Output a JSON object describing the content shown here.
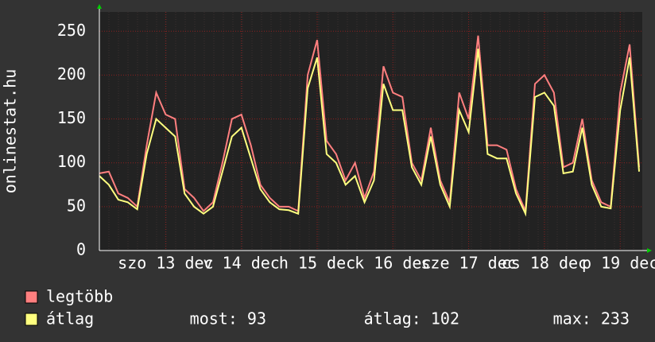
{
  "chart_data": {
    "type": "line",
    "y_label": "onlinestat.hu",
    "x": [
      0,
      3,
      6,
      9,
      12,
      15,
      18,
      21,
      24,
      27,
      30,
      33,
      36,
      39,
      42,
      45,
      48,
      51,
      54,
      57,
      60,
      63,
      66,
      69,
      72,
      75,
      78,
      81,
      84,
      87,
      90,
      93,
      96,
      99,
      102,
      105,
      108,
      111,
      114,
      117,
      120,
      123,
      126,
      129,
      132,
      135,
      138,
      141,
      144,
      147,
      150,
      153,
      156,
      159,
      162,
      165,
      168,
      171
    ],
    "series": [
      {
        "name": "legtöbb",
        "color": "#ff7f7f",
        "values": [
          88,
          90,
          65,
          60,
          50,
          120,
          180,
          155,
          150,
          70,
          60,
          45,
          55,
          100,
          150,
          155,
          120,
          75,
          60,
          50,
          50,
          45,
          200,
          240,
          125,
          110,
          80,
          100,
          60,
          90,
          210,
          180,
          175,
          100,
          80,
          140,
          80,
          55,
          180,
          150,
          245,
          120,
          120,
          115,
          70,
          45,
          190,
          200,
          180,
          95,
          100,
          150,
          80,
          55,
          50,
          180,
          235,
          95
        ]
      },
      {
        "name": "átlag",
        "color": "#ffff7f",
        "values": [
          85,
          75,
          58,
          55,
          47,
          110,
          150,
          140,
          130,
          65,
          50,
          42,
          50,
          90,
          130,
          140,
          105,
          70,
          55,
          47,
          46,
          42,
          185,
          220,
          110,
          100,
          75,
          85,
          55,
          80,
          190,
          160,
          160,
          95,
          75,
          130,
          75,
          50,
          160,
          135,
          230,
          110,
          105,
          105,
          65,
          42,
          175,
          180,
          165,
          88,
          90,
          140,
          75,
          50,
          48,
          160,
          220,
          90
        ]
      }
    ],
    "xlim": [
      0,
      172
    ],
    "xticks": [
      {
        "value": 21,
        "label": "szo 13 dec"
      },
      {
        "value": 45,
        "label": "v 14 dec"
      },
      {
        "value": 69,
        "label": "h 15 dec"
      },
      {
        "value": 93,
        "label": "k 16 dec"
      },
      {
        "value": 117,
        "label": "sze 17 dec"
      },
      {
        "value": 141,
        "label": "cs 18 dec"
      },
      {
        "value": 165,
        "label": "p 19 dec"
      }
    ],
    "ylim": [
      0,
      272
    ],
    "yticks": [
      0,
      50,
      100,
      150,
      200,
      250
    ],
    "grid": true,
    "stats": [
      "most: 93",
      "átlag: 102",
      "max: 233"
    ]
  }
}
